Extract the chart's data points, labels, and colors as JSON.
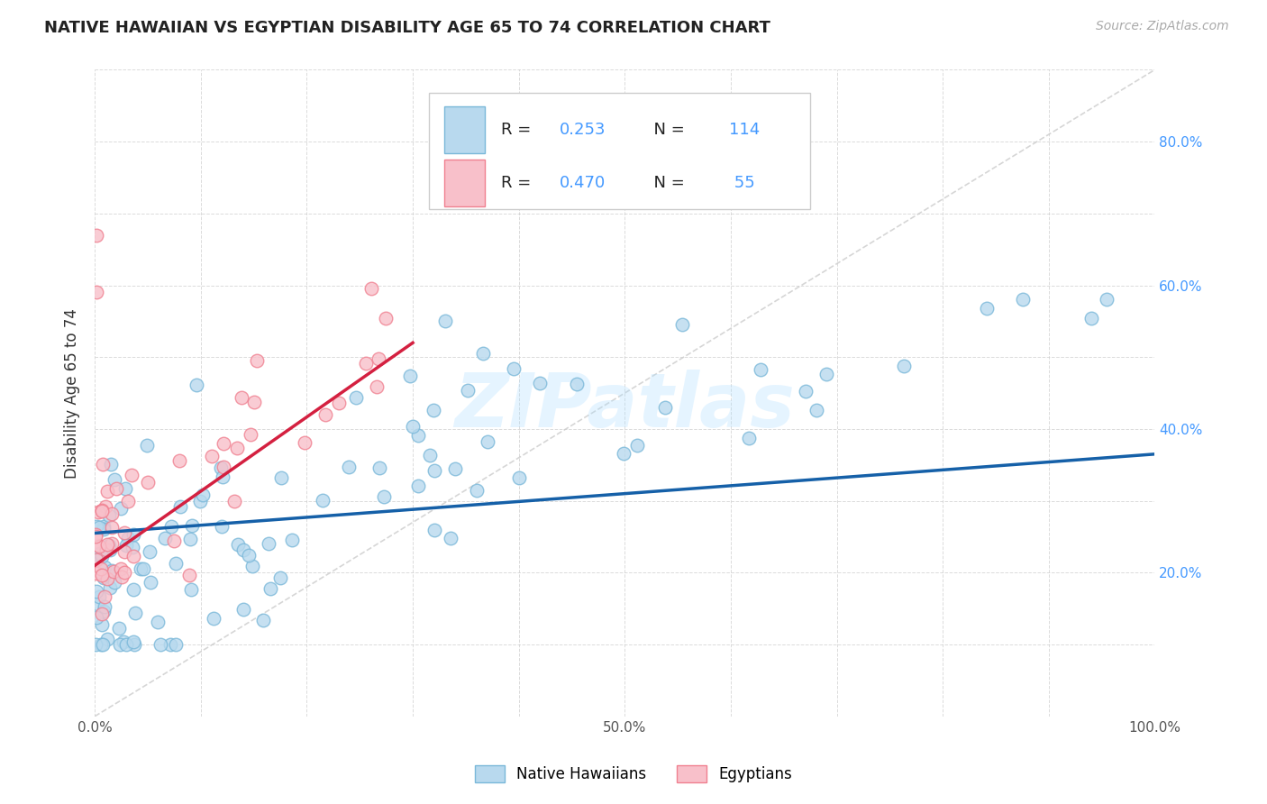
{
  "title": "NATIVE HAWAIIAN VS EGYPTIAN DISABILITY AGE 65 TO 74 CORRELATION CHART",
  "source": "Source: ZipAtlas.com",
  "ylabel": "Disability Age 65 to 74",
  "xlim": [
    0.0,
    1.0
  ],
  "ylim": [
    0.0,
    0.9
  ],
  "hawaiian_color": "#7ab8d9",
  "hawaiian_face": "#b8d9ee",
  "egyptian_color": "#f08090",
  "egyptian_face": "#f8c0ca",
  "trend_hawaiian_color": "#1560a8",
  "trend_egyptian_color": "#d42040",
  "diagonal_color": "#cccccc",
  "background_color": "#ffffff",
  "grid_color": "#cccccc",
  "watermark": "ZIPatlas",
  "R_hawaiian": 0.253,
  "N_hawaiian": 114,
  "R_egyptian": 0.47,
  "N_egyptian": 55,
  "ytick_color": "#4499ff",
  "xtick_color": "#555555",
  "hawaiian_trend_start_x": 0.0,
  "hawaiian_trend_end_x": 1.0,
  "hawaiian_trend_start_y": 0.255,
  "hawaiian_trend_end_y": 0.365,
  "egyptian_trend_start_x": 0.0,
  "egyptian_trend_end_x": 0.3,
  "egyptian_trend_start_y": 0.21,
  "egyptian_trend_end_y": 0.52
}
